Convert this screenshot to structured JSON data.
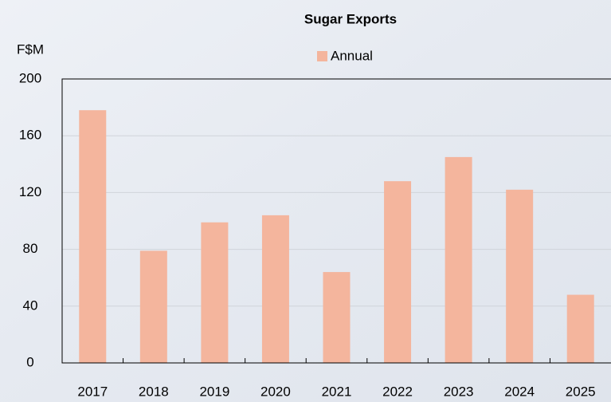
{
  "chart_data": {
    "type": "bar",
    "title": "Sugar Exports",
    "y_label": "F$M",
    "categories": [
      "2017",
      "2018",
      "2019",
      "2020",
      "2021",
      "2022",
      "2023",
      "2024",
      "2025"
    ],
    "series": [
      {
        "name": "Annual",
        "color": "#f4b59d",
        "values": [
          178,
          79,
          99,
          104,
          64,
          128,
          145,
          122,
          48
        ]
      }
    ],
    "ylim": [
      0,
      200
    ],
    "yticks": [
      0,
      40,
      80,
      120,
      160,
      200
    ],
    "grid": true
  }
}
